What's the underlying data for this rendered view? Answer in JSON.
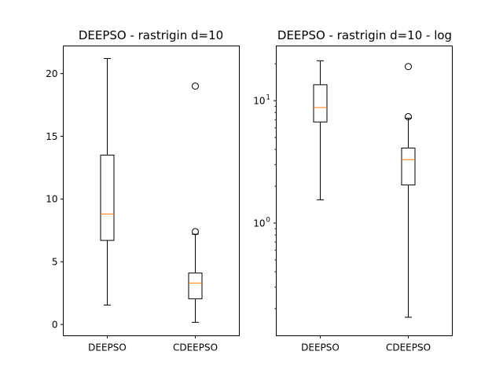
{
  "colors": {
    "median": "#ff7f0e",
    "box": "#000000",
    "background": "#ffffff"
  },
  "chart_data": [
    {
      "type": "boxplot",
      "title": "DEEPSO - rastrigin d=10",
      "yscale": "linear",
      "ylim": [
        -0.9,
        22.2
      ],
      "yticks": [
        0,
        5,
        10,
        15,
        20
      ],
      "yticklabels": [
        "0",
        "5",
        "10",
        "15",
        "20"
      ],
      "categories": [
        "DEEPSO",
        "CDEEPSO"
      ],
      "boxes": [
        {
          "name": "DEEPSO",
          "whislo": 1.55,
          "q1": 6.7,
          "med": 8.8,
          "q3": 13.5,
          "whishi": 21.2,
          "fliers": []
        },
        {
          "name": "CDEEPSO",
          "whislo": 0.17,
          "q1": 2.05,
          "med": 3.3,
          "q3": 4.1,
          "whishi": 7.2,
          "fliers": [
            7.4,
            19.0
          ]
        }
      ]
    },
    {
      "type": "boxplot",
      "title": "DEEPSO - rastrigin d=10 - log",
      "yscale": "log",
      "ylim": [
        0.12,
        28
      ],
      "yticks": [
        1,
        10
      ],
      "yticklabels": [
        {
          "base": "10",
          "exp": "0"
        },
        {
          "base": "10",
          "exp": "1"
        }
      ],
      "categories": [
        "DEEPSO",
        "CDEEPSO"
      ],
      "boxes": [
        {
          "name": "DEEPSO",
          "whislo": 1.55,
          "q1": 6.7,
          "med": 8.8,
          "q3": 13.5,
          "whishi": 21.2,
          "fliers": []
        },
        {
          "name": "CDEEPSO",
          "whislo": 0.17,
          "q1": 2.05,
          "med": 3.3,
          "q3": 4.1,
          "whishi": 7.2,
          "fliers": [
            7.4,
            19.0
          ]
        }
      ]
    }
  ]
}
